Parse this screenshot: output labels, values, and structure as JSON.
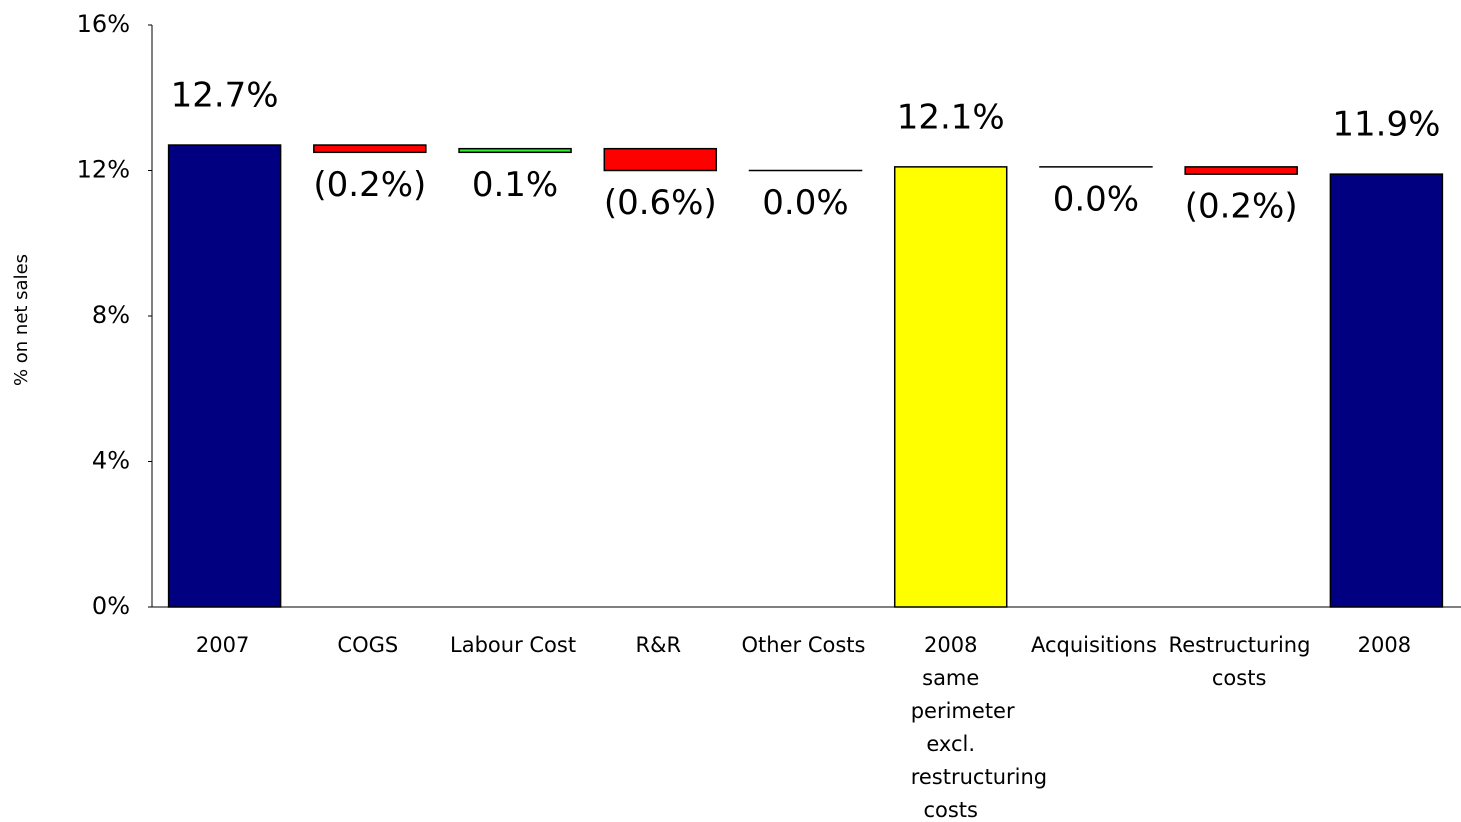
{
  "chart_data": {
    "type": "waterfall",
    "y_label": "% on net sales",
    "categories": [
      "2007",
      "COGS",
      "Labour Cost",
      "R&R",
      "Other Costs",
      "2008 same perimeter excl. restructuring costs",
      "Acquisitions",
      "Restructuring costs",
      "2008"
    ],
    "values": [
      12.7,
      -0.2,
      0.1,
      -0.6,
      0.0,
      12.1,
      0.0,
      -0.2,
      11.9
    ],
    "value_labels": [
      "12.7%",
      "(0.2%)",
      "0.1%",
      "(0.6%)",
      "0.0%",
      "12.1%",
      "0.0%",
      "(0.2%)",
      "11.9%"
    ],
    "measures": [
      "total",
      "relative",
      "relative",
      "relative",
      "relative",
      "total",
      "relative",
      "relative",
      "total"
    ],
    "colors": [
      "#000080",
      "#ff0000",
      "#33ee33",
      "#ff0000",
      "#ff0000",
      "#ffff00",
      "#ff0000",
      "#ff0000",
      "#000080"
    ],
    "ylim": [
      0,
      16
    ],
    "yticks": [
      {
        "value": 0,
        "label": "0%"
      },
      {
        "value": 4,
        "label": "4%"
      },
      {
        "value": 8,
        "label": "8%"
      },
      {
        "value": 12,
        "label": "12%"
      },
      {
        "value": 16,
        "label": "16%"
      }
    ]
  }
}
